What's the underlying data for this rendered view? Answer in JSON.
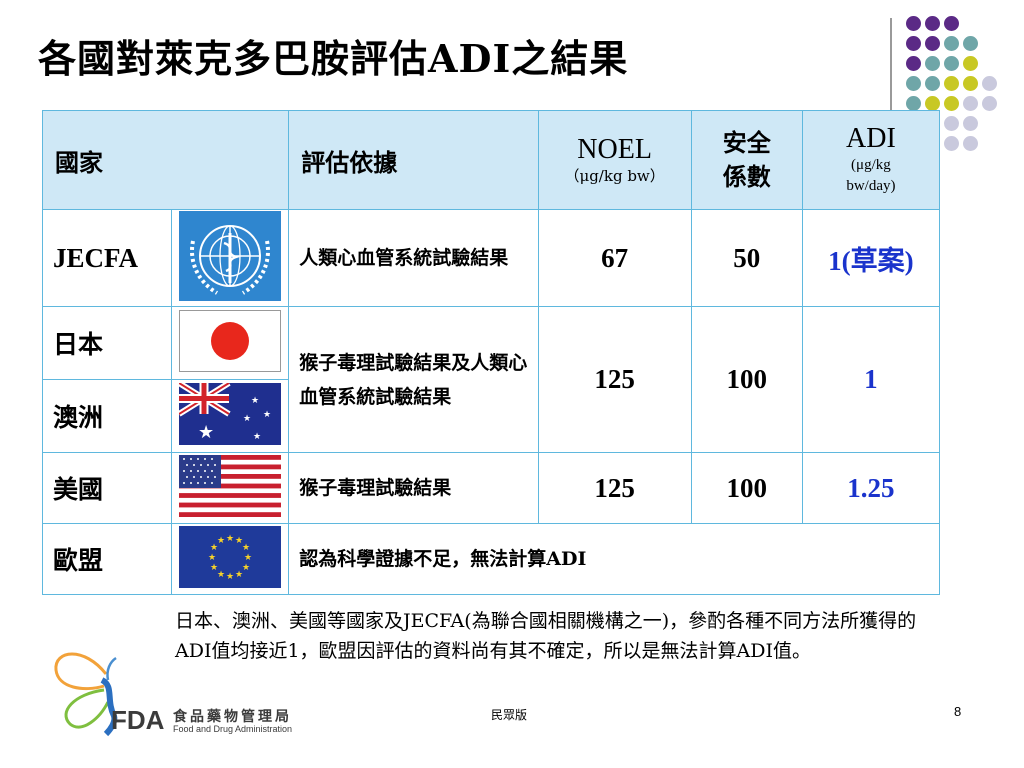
{
  "title": "各國對萊克多巴胺評估ADI之結果",
  "table": {
    "headers": {
      "country": "國家",
      "basis": "評估依據",
      "noel": "NOEL",
      "noel_unit": "（μg/kg bw）",
      "safety_line1": "安全",
      "safety_line2": "係數",
      "adi": "ADI",
      "adi_unit_1": "(μg/kg",
      "adi_unit_2": "bw/day)"
    },
    "rows": {
      "jecfa": {
        "country": "JECFA",
        "basis": "人類心血管系統試驗結果",
        "noel": "67",
        "safety": "50",
        "adi_num": "1(",
        "adi_word": "草案",
        "adi_close": ")"
      },
      "japan": {
        "country": "日本"
      },
      "australia": {
        "country": "澳洲"
      },
      "jp_au": {
        "basis": "猴子毒理試驗結果及人類心血管系統試驗結果",
        "noel": "125",
        "safety": "100",
        "adi": "1"
      },
      "usa": {
        "country": "美國",
        "basis": "猴子毒理試驗結果",
        "noel": "125",
        "safety": "100",
        "adi": "1.25"
      },
      "eu": {
        "country": "歐盟",
        "basis": "認為科學證據不足，無法計算ADI"
      }
    }
  },
  "note": "日本、澳洲、美國等國家及JECFA(為聯合國相關機構之一)，參酌各種不同方法所獲得的ADI值均接近1，歐盟因評估的資料尚有其不確定，所以是無法計算ADI值。",
  "footer": {
    "center": "民眾版",
    "page": "8"
  },
  "logo": {
    "abbr": "FDA",
    "zh": "食品藥物管理局",
    "en": "Food and Drug Administration"
  },
  "colors": {
    "table_border": "#5fb8de",
    "header_bg": "#cfe8f6",
    "adi_text": "#1a33cc"
  },
  "icons": [
    "who-emblem-icon",
    "japan-flag-icon",
    "australia-flag-icon",
    "usa-flag-icon",
    "eu-flag-icon",
    "fda-butterfly-logo"
  ]
}
